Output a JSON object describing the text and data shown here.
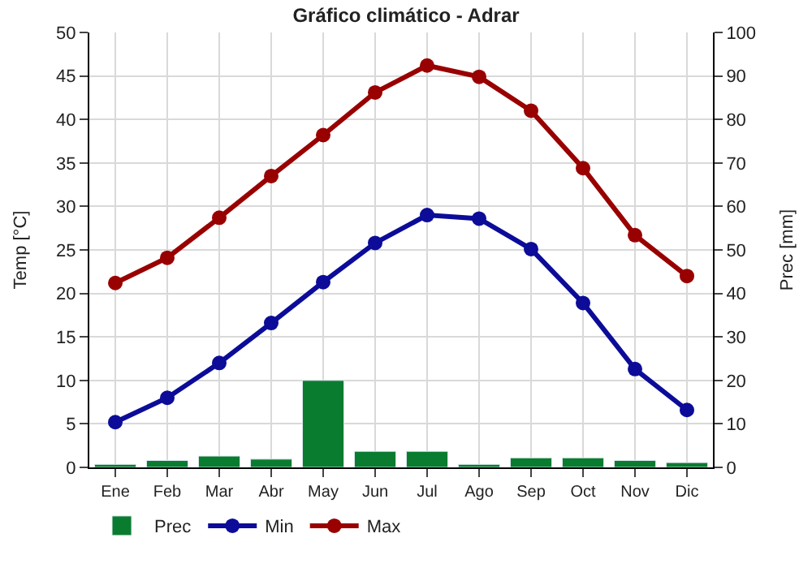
{
  "chart_data": {
    "type": "line",
    "title": "Gráfico climático - Adrar",
    "ylabel": "Temp [°C]",
    "y2label": "Prec [mm]",
    "categories": [
      "Ene",
      "Feb",
      "Mar",
      "Abr",
      "May",
      "Jun",
      "Jul",
      "Ago",
      "Sep",
      "Oct",
      "Nov",
      "Dic"
    ],
    "series": [
      {
        "name": "Prec",
        "type": "bar",
        "axis": "y2",
        "color": "#0a7c30",
        "values": [
          0.7,
          1.6,
          2.6,
          1.9,
          20,
          3.7,
          3.7,
          0.7,
          2.2,
          2.2,
          1.6,
          1.1
        ]
      },
      {
        "name": "Min",
        "color": "#0c0c99",
        "values": [
          5.2,
          8.0,
          12.0,
          16.6,
          21.3,
          25.8,
          29.0,
          28.6,
          25.1,
          18.9,
          11.3,
          6.6
        ]
      },
      {
        "name": "Max",
        "color": "#990000",
        "values": [
          21.2,
          24.1,
          28.7,
          33.5,
          38.2,
          43.1,
          46.2,
          44.9,
          41.0,
          34.4,
          26.7,
          22.0
        ]
      }
    ],
    "ylim": [
      0,
      50
    ],
    "yticks": [
      0,
      5,
      10,
      15,
      20,
      25,
      30,
      35,
      40,
      45,
      50
    ],
    "y2lim": [
      0,
      100
    ],
    "y2ticks": [
      0,
      10,
      20,
      30,
      40,
      50,
      60,
      70,
      80,
      90,
      100
    ],
    "grid": true,
    "legend": "bottom left",
    "marker": "circle",
    "line_style": "solid"
  }
}
